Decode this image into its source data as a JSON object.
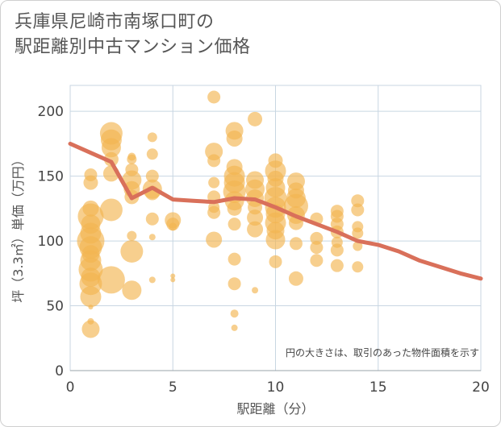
{
  "title": {
    "line1": "兵庫県尼崎市南塚口町の",
    "line2": "駅距離別中古マンション価格"
  },
  "chart_data": {
    "type": "scatter",
    "title": "兵庫県尼崎市南塚口町の駅距離別中古マンション価格",
    "xlabel": "駅距離（分）",
    "ylabel": "坪（3.3㎡）単価（万円）",
    "xlim": [
      0,
      20
    ],
    "ylim": [
      0,
      220
    ],
    "xticks": [
      0,
      5,
      10,
      15,
      20
    ],
    "yticks": [
      0,
      50,
      100,
      150,
      200
    ],
    "grid": true,
    "annotation": "円の大きさは、取引のあった物件面積を示す",
    "colors": {
      "bubble": "#f2b552",
      "line": "#d9705a",
      "grid": "#c8d6e2"
    },
    "series": [
      {
        "type": "bubble",
        "points": [
          {
            "x": 1,
            "y": 32,
            "s": 11
          },
          {
            "x": 1,
            "y": 38,
            "s": 4
          },
          {
            "x": 1,
            "y": 49,
            "s": 3
          },
          {
            "x": 1,
            "y": 57,
            "s": 13
          },
          {
            "x": 1,
            "y": 67,
            "s": 14
          },
          {
            "x": 1,
            "y": 72,
            "s": 12
          },
          {
            "x": 1,
            "y": 78,
            "s": 15
          },
          {
            "x": 1,
            "y": 85,
            "s": 13
          },
          {
            "x": 1,
            "y": 90,
            "s": 11
          },
          {
            "x": 1,
            "y": 95,
            "s": 14
          },
          {
            "x": 1,
            "y": 100,
            "s": 17
          },
          {
            "x": 1,
            "y": 106,
            "s": 13
          },
          {
            "x": 1,
            "y": 113,
            "s": 12
          },
          {
            "x": 1,
            "y": 119,
            "s": 16
          },
          {
            "x": 1,
            "y": 125,
            "s": 10
          },
          {
            "x": 1,
            "y": 145,
            "s": 9
          },
          {
            "x": 1,
            "y": 151,
            "s": 8
          },
          {
            "x": 2,
            "y": 70,
            "s": 17
          },
          {
            "x": 2,
            "y": 124,
            "s": 14
          },
          {
            "x": 2,
            "y": 152,
            "s": 10
          },
          {
            "x": 2,
            "y": 163,
            "s": 9
          },
          {
            "x": 2,
            "y": 172,
            "s": 12
          },
          {
            "x": 2,
            "y": 178,
            "s": 13
          },
          {
            "x": 2,
            "y": 183,
            "s": 14
          },
          {
            "x": 3,
            "y": 62,
            "s": 12
          },
          {
            "x": 3,
            "y": 92,
            "s": 14
          },
          {
            "x": 3,
            "y": 104,
            "s": 6
          },
          {
            "x": 3,
            "y": 134,
            "s": 9
          },
          {
            "x": 3,
            "y": 140,
            "s": 10
          },
          {
            "x": 3,
            "y": 147,
            "s": 12
          },
          {
            "x": 3,
            "y": 155,
            "s": 8
          },
          {
            "x": 3,
            "y": 163,
            "s": 6
          },
          {
            "x": 3,
            "y": 165,
            "s": 5
          },
          {
            "x": 4,
            "y": 70,
            "s": 4
          },
          {
            "x": 4,
            "y": 103,
            "s": 4
          },
          {
            "x": 4,
            "y": 117,
            "s": 8
          },
          {
            "x": 4,
            "y": 137,
            "s": 9
          },
          {
            "x": 4,
            "y": 140,
            "s": 12
          },
          {
            "x": 4,
            "y": 150,
            "s": 8
          },
          {
            "x": 4,
            "y": 167,
            "s": 7
          },
          {
            "x": 4,
            "y": 180,
            "s": 6
          },
          {
            "x": 5,
            "y": 70,
            "s": 3
          },
          {
            "x": 5,
            "y": 73,
            "s": 3
          },
          {
            "x": 5,
            "y": 111,
            "s": 5
          },
          {
            "x": 5,
            "y": 113,
            "s": 8
          },
          {
            "x": 5,
            "y": 116,
            "s": 10
          },
          {
            "x": 7,
            "y": 101,
            "s": 10
          },
          {
            "x": 7,
            "y": 122,
            "s": 8
          },
          {
            "x": 7,
            "y": 126,
            "s": 7
          },
          {
            "x": 7,
            "y": 134,
            "s": 8
          },
          {
            "x": 7,
            "y": 145,
            "s": 7
          },
          {
            "x": 7,
            "y": 162,
            "s": 8
          },
          {
            "x": 7,
            "y": 169,
            "s": 11
          },
          {
            "x": 7,
            "y": 211,
            "s": 8
          },
          {
            "x": 8,
            "y": 33,
            "s": 4
          },
          {
            "x": 8,
            "y": 44,
            "s": 5
          },
          {
            "x": 8,
            "y": 67,
            "s": 8
          },
          {
            "x": 8,
            "y": 86,
            "s": 8
          },
          {
            "x": 8,
            "y": 113,
            "s": 8
          },
          {
            "x": 8,
            "y": 125,
            "s": 9
          },
          {
            "x": 8,
            "y": 131,
            "s": 12
          },
          {
            "x": 8,
            "y": 138,
            "s": 14
          },
          {
            "x": 8,
            "y": 145,
            "s": 13
          },
          {
            "x": 8,
            "y": 150,
            "s": 13
          },
          {
            "x": 8,
            "y": 157,
            "s": 10
          },
          {
            "x": 8,
            "y": 179,
            "s": 10
          },
          {
            "x": 8,
            "y": 185,
            "s": 11
          },
          {
            "x": 9,
            "y": 62,
            "s": 4
          },
          {
            "x": 9,
            "y": 109,
            "s": 10
          },
          {
            "x": 9,
            "y": 118,
            "s": 10
          },
          {
            "x": 9,
            "y": 126,
            "s": 9
          },
          {
            "x": 9,
            "y": 133,
            "s": 11
          },
          {
            "x": 9,
            "y": 140,
            "s": 12
          },
          {
            "x": 9,
            "y": 147,
            "s": 11
          },
          {
            "x": 9,
            "y": 194,
            "s": 9
          },
          {
            "x": 10,
            "y": 84,
            "s": 8
          },
          {
            "x": 10,
            "y": 101,
            "s": 12
          },
          {
            "x": 10,
            "y": 108,
            "s": 11
          },
          {
            "x": 10,
            "y": 114,
            "s": 13
          },
          {
            "x": 10,
            "y": 121,
            "s": 12
          },
          {
            "x": 10,
            "y": 126,
            "s": 13
          },
          {
            "x": 10,
            "y": 133,
            "s": 14
          },
          {
            "x": 10,
            "y": 141,
            "s": 12
          },
          {
            "x": 10,
            "y": 148,
            "s": 10
          },
          {
            "x": 10,
            "y": 154,
            "s": 13
          },
          {
            "x": 10,
            "y": 162,
            "s": 9
          },
          {
            "x": 11,
            "y": 71,
            "s": 9
          },
          {
            "x": 11,
            "y": 98,
            "s": 8
          },
          {
            "x": 11,
            "y": 114,
            "s": 9
          },
          {
            "x": 11,
            "y": 120,
            "s": 11
          },
          {
            "x": 11,
            "y": 127,
            "s": 15
          },
          {
            "x": 11,
            "y": 133,
            "s": 12
          },
          {
            "x": 11,
            "y": 139,
            "s": 10
          },
          {
            "x": 11,
            "y": 146,
            "s": 11
          },
          {
            "x": 12,
            "y": 85,
            "s": 8
          },
          {
            "x": 12,
            "y": 95,
            "s": 8
          },
          {
            "x": 12,
            "y": 102,
            "s": 8
          },
          {
            "x": 12,
            "y": 117,
            "s": 8
          },
          {
            "x": 13,
            "y": 81,
            "s": 8
          },
          {
            "x": 13,
            "y": 93,
            "s": 8
          },
          {
            "x": 13,
            "y": 99,
            "s": 7
          },
          {
            "x": 13,
            "y": 107,
            "s": 8
          },
          {
            "x": 13,
            "y": 113,
            "s": 8
          },
          {
            "x": 13,
            "y": 119,
            "s": 8
          },
          {
            "x": 13,
            "y": 123,
            "s": 8
          },
          {
            "x": 14,
            "y": 80,
            "s": 7
          },
          {
            "x": 14,
            "y": 96,
            "s": 6
          },
          {
            "x": 14,
            "y": 106,
            "s": 7
          },
          {
            "x": 14,
            "y": 111,
            "s": 7
          },
          {
            "x": 14,
            "y": 124,
            "s": 8
          },
          {
            "x": 14,
            "y": 131,
            "s": 8
          }
        ]
      },
      {
        "type": "line",
        "points": [
          {
            "x": 0,
            "y": 175
          },
          {
            "x": 1,
            "y": 168
          },
          {
            "x": 2,
            "y": 161
          },
          {
            "x": 3,
            "y": 133
          },
          {
            "x": 4,
            "y": 141
          },
          {
            "x": 5,
            "y": 132
          },
          {
            "x": 6,
            "y": 131
          },
          {
            "x": 7,
            "y": 130
          },
          {
            "x": 8,
            "y": 133
          },
          {
            "x": 9,
            "y": 132
          },
          {
            "x": 10,
            "y": 126
          },
          {
            "x": 11,
            "y": 119
          },
          {
            "x": 12,
            "y": 113
          },
          {
            "x": 13,
            "y": 107
          },
          {
            "x": 14,
            "y": 100
          },
          {
            "x": 15,
            "y": 97
          },
          {
            "x": 16,
            "y": 92
          },
          {
            "x": 17,
            "y": 85
          },
          {
            "x": 18,
            "y": 80
          },
          {
            "x": 19,
            "y": 75
          },
          {
            "x": 20,
            "y": 71
          }
        ]
      }
    ]
  }
}
